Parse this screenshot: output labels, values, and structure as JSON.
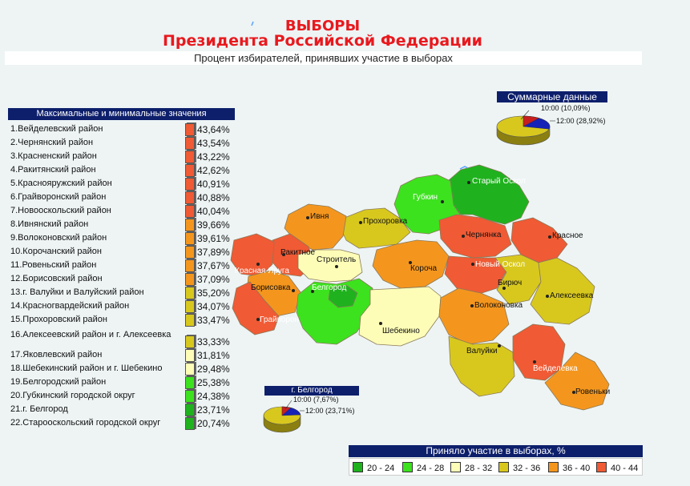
{
  "title": {
    "line1": "ВЫБОРЫ",
    "line2": "Президента Российской Федерации"
  },
  "subtitle": "Процент избирателей, принявших участие в выборах",
  "ranking": {
    "header": "Максимальные и минимальные значения",
    "items": [
      {
        "label": "1.Вейделевский район",
        "value": "43,64%",
        "color": "#f05a34"
      },
      {
        "label": "2.Чернянский район",
        "value": "43,54%",
        "color": "#f05a34"
      },
      {
        "label": "3.Красненский район",
        "value": "43,22%",
        "color": "#f05a34"
      },
      {
        "label": "4.Ракитянский район",
        "value": "42,62%",
        "color": "#f05a34"
      },
      {
        "label": "5.Краснояружский район",
        "value": "40,91%",
        "color": "#f05a34"
      },
      {
        "label": "6.Грайворонский район",
        "value": "40,88%",
        "color": "#f05a34"
      },
      {
        "label": "7.Новооскольский район",
        "value": "40,04%",
        "color": "#f05a34"
      },
      {
        "label": "8.Ивнянский район",
        "value": "39,66%",
        "color": "#f4961e"
      },
      {
        "label": "9.Волоконовский район",
        "value": "39,61%",
        "color": "#f4961e"
      },
      {
        "label": "10.Корочанский район",
        "value": "37,89%",
        "color": "#f4961e"
      },
      {
        "label": "11.Ровеньский район",
        "value": "37,67%",
        "color": "#f4961e"
      },
      {
        "label": "12.Борисовский район",
        "value": "37,09%",
        "color": "#f4961e"
      },
      {
        "label": "13.г. Валуйки и Валуйский район",
        "value": "35,20%",
        "color": "#d8c81e"
      },
      {
        "label": "14.Красногвардейский район",
        "value": "34,07%",
        "color": "#d8c81e"
      },
      {
        "label": "15.Прохоровский район",
        "value": "33,47%",
        "color": "#d8c81e"
      },
      {
        "label": "16.Алексеевский район и г. Алексеевка",
        "value": "33,33%",
        "color": "#d8c81e"
      },
      {
        "label": "17.Яковлевский район",
        "value": "31,81%",
        "color": "#fdfdb8"
      },
      {
        "label": "18.Шебекинский район и г. Шебекино",
        "value": "29,48%",
        "color": "#fdfdb8"
      },
      {
        "label": "19.Белгородский район",
        "value": "25,38%",
        "color": "#3ce21e"
      },
      {
        "label": "20.Губкинский городской округ",
        "value": "24,38%",
        "color": "#3ce21e"
      },
      {
        "label": "21.г. Белгород",
        "value": "23,71%",
        "color": "#1fb21e"
      },
      {
        "label": "22.Старооскольский городской округ",
        "value": "20,74%",
        "color": "#1fb21e"
      }
    ]
  },
  "summary": {
    "title": "Суммарные данные",
    "label_10": "10:00 (10,09%)",
    "label_12": "12:00 (28,92%)",
    "value_10": 10.09,
    "value_12": 28.92
  },
  "belgorod": {
    "title": "г. Белгород",
    "label_10": "10:00 (7,67%)",
    "label_12": "12:00 (23,71%)",
    "value_10": 7.67,
    "value_12": 23.71
  },
  "map": {
    "labels": {
      "stary_oskol": "Старый Оскол",
      "gubkin": "Губкин",
      "ivnya": "Ивня",
      "prokhorovka": "Прохоровка",
      "chernyanka": "Чернянка",
      "krasnoe": "Красное",
      "rakitnoe": "Ракитное",
      "krasnaya_yaruga": "Красная Яруга",
      "stroitel": "Строитель",
      "korocha": "Короча",
      "novy_oskol": "Новый Оскол",
      "borisovka": "Борисовка",
      "belgorod": "Белгород",
      "biryuch": "Бирюч",
      "alekseevka": "Алексеевка",
      "volokonovka": "Волоконовка",
      "graivoron": "Грайворон",
      "shebekino": "Шебекино",
      "valuyki": "Валуйки",
      "veydelevka": "Вейделевка",
      "rovenki": "Ровеньки"
    }
  },
  "legend": {
    "title": "Приняло участие в выборах, %",
    "items": [
      {
        "label": "20 - 24",
        "color": "#1fb21e"
      },
      {
        "label": "24 - 28",
        "color": "#3ce21e"
      },
      {
        "label": "28 - 32",
        "color": "#fdfdb8"
      },
      {
        "label": "32 - 36",
        "color": "#d8c81e"
      },
      {
        "label": "36 - 40",
        "color": "#f4961e"
      },
      {
        "label": "40 - 44",
        "color": "#f05a34"
      }
    ]
  }
}
